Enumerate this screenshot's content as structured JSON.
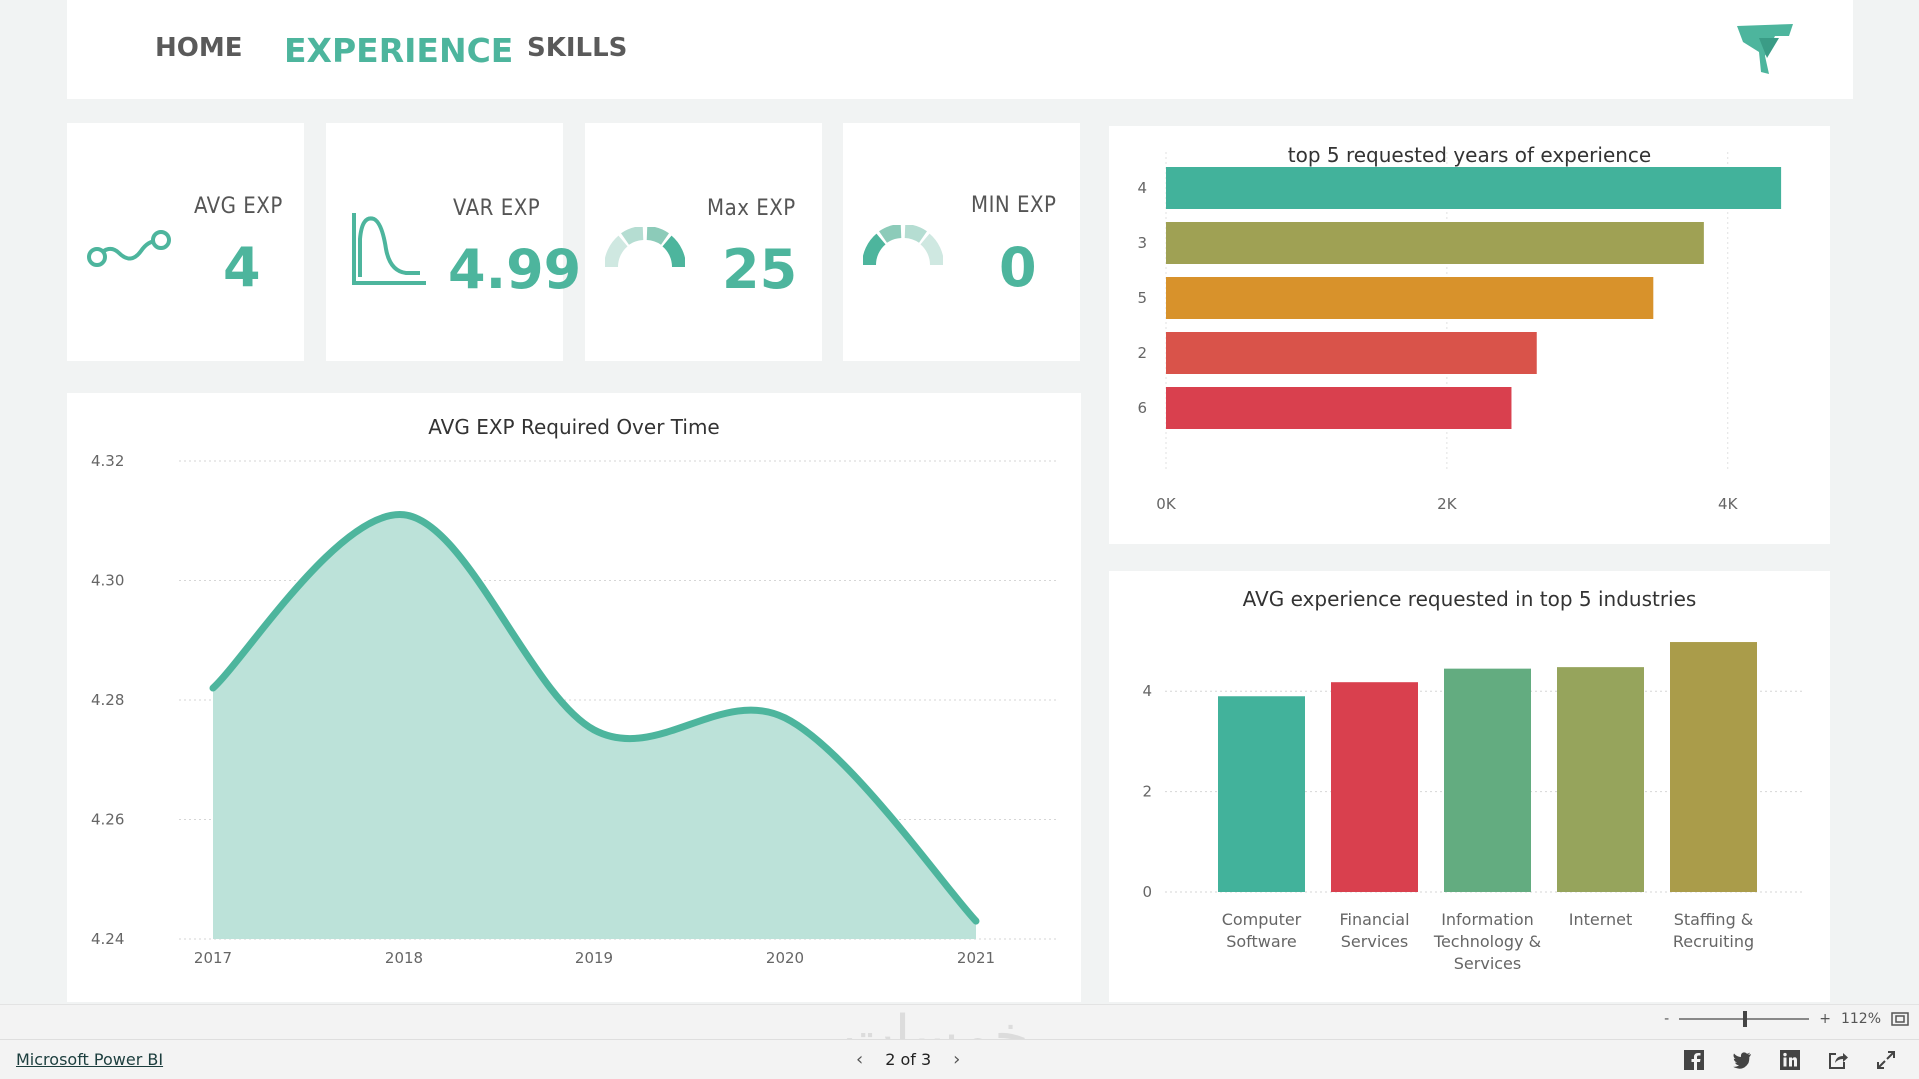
{
  "nav": {
    "home": "HOME",
    "experience": "EXPERIENCE",
    "skills": "SKILLS"
  },
  "kpis": {
    "avg": {
      "label": "AVG EXP",
      "value": "4"
    },
    "var": {
      "label": "VAR EXP",
      "value": "4.99"
    },
    "max": {
      "label": "Max EXP",
      "value": "25"
    },
    "min": {
      "label": "MIN EXP",
      "value": "0"
    }
  },
  "colors": {
    "accent": "#4db59d",
    "teal": "#42b29b",
    "olive": "#9fa154",
    "orange": "#d8922b",
    "red": "#d9534a",
    "crimson": "#d9404e",
    "green": "#63ac80",
    "khaki": "#96a45c",
    "mustard": "#aa9c4a"
  },
  "chart_data": [
    {
      "type": "area",
      "title": "AVG EXP Required Over Time",
      "categories": [
        "2017",
        "2018",
        "2019",
        "2020",
        "2021"
      ],
      "values": [
        4.282,
        4.311,
        4.275,
        4.277,
        4.243
      ],
      "ylim": [
        4.24,
        4.32
      ],
      "yticks": [
        "4.32",
        "4.30",
        "4.28",
        "4.26",
        "4.24"
      ],
      "xlabel": "",
      "ylabel": "",
      "grid": true
    },
    {
      "type": "bar",
      "orientation": "horizontal",
      "title": "top 5 requested years of experience",
      "categories": [
        "4",
        "3",
        "5",
        "2",
        "6"
      ],
      "values": [
        4380,
        3830,
        3470,
        2640,
        2460
      ],
      "xlim": [
        0,
        4600
      ],
      "xticks": [
        "0K",
        "2K",
        "4K"
      ],
      "grid": true
    },
    {
      "type": "bar",
      "title": "AVG experience requested in top 5 industries",
      "categories": [
        [
          "Computer",
          "Software"
        ],
        [
          "Financial",
          "Services"
        ],
        [
          "Information",
          "Technology &",
          "Services"
        ],
        [
          "Internet"
        ],
        [
          "Staffing &",
          "Recruiting"
        ]
      ],
      "values": [
        3.9,
        4.18,
        4.45,
        4.48,
        4.98
      ],
      "ylim": [
        0,
        5.2
      ],
      "yticks": [
        "4",
        "2",
        "0"
      ],
      "grid": true
    }
  ],
  "footer": {
    "brand": "Microsoft Power BI",
    "page": "2 of 3",
    "zoom": "112%",
    "zoom_minus": "-",
    "zoom_plus": "+",
    "prev": "‹",
    "next": "›"
  },
  "watermark": "خمسات",
  "socials": [
    "f",
    "t",
    "in",
    "share",
    "expand"
  ]
}
